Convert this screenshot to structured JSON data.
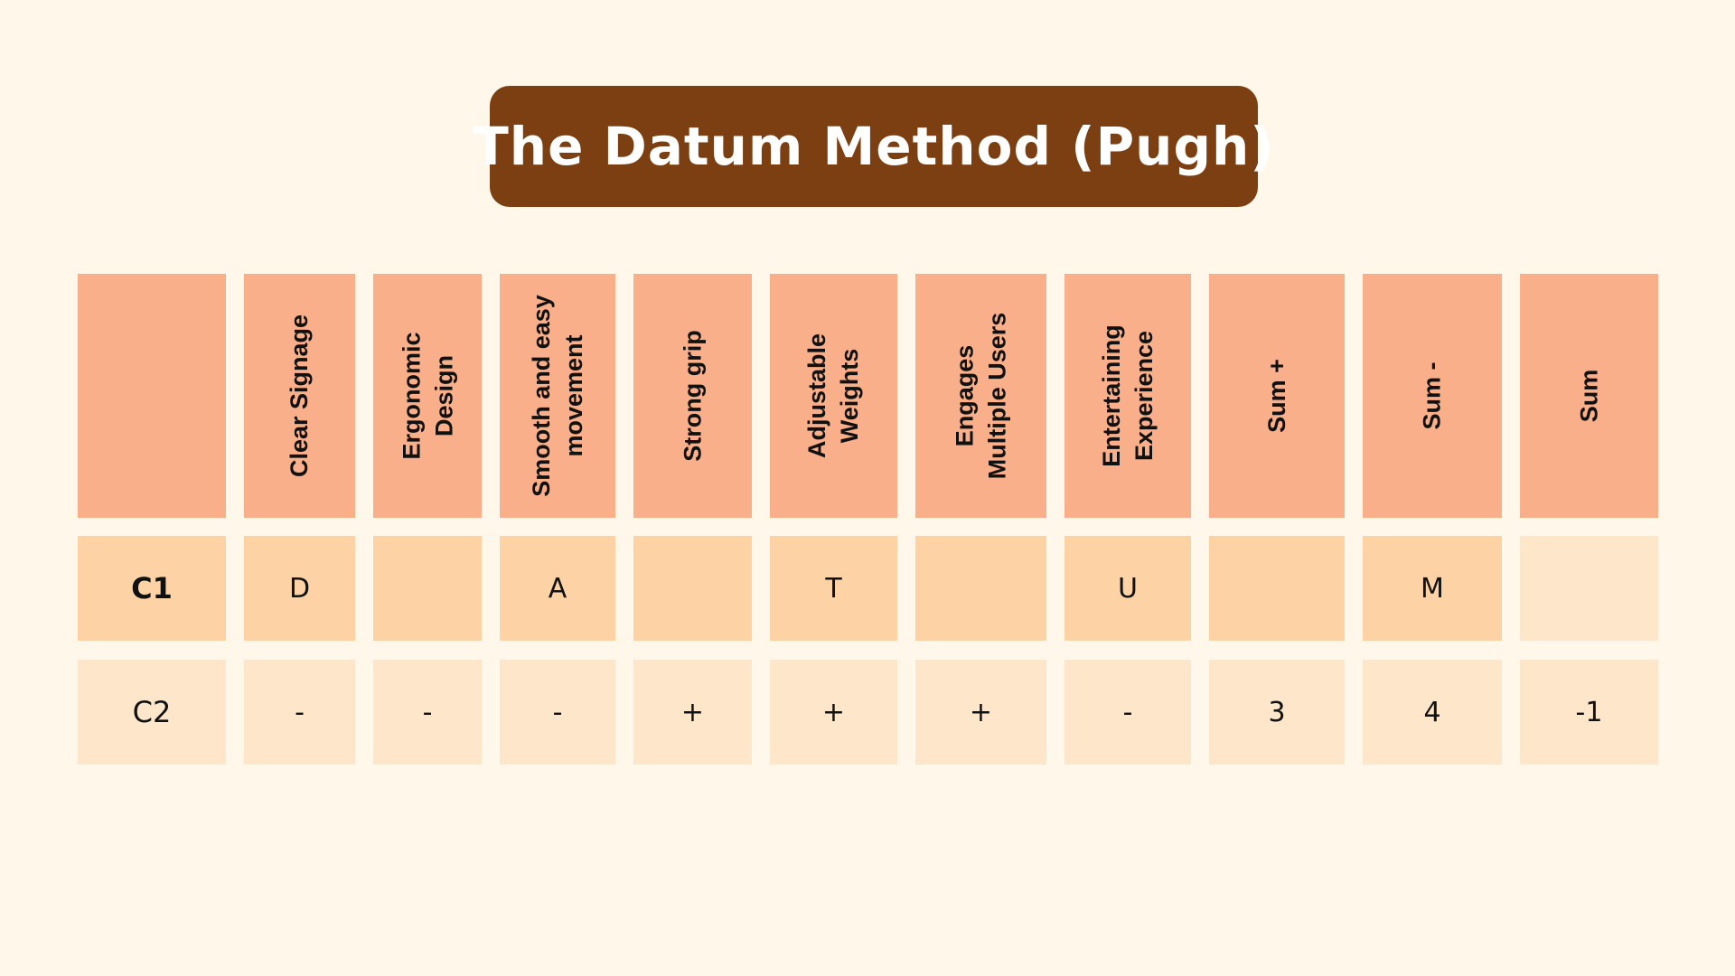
{
  "title": "The Datum Method (Pugh)",
  "table": {
    "headers": [
      "",
      "Clear Signage",
      "Ergonomic\nDesign",
      "Smooth and easy\nmovement",
      "Strong grip",
      "Adjustable\nWeights",
      "Engages\nMultiple Users",
      "Entertaining\nExperience",
      "Sum +",
      "Sum -",
      "Sum"
    ],
    "rows": [
      {
        "label": "C1",
        "cells": [
          "D",
          "",
          "A",
          "",
          "T",
          "",
          "U",
          "",
          "M",
          ""
        ]
      },
      {
        "label": "C2",
        "cells": [
          "-",
          "-",
          "-",
          "+",
          "+",
          "+",
          "-",
          "3",
          "4",
          "-1"
        ]
      }
    ]
  },
  "colors": {
    "background": "#fff7e9",
    "title_bg": "#7b3f12",
    "header_cell": "#f9b08a",
    "row1_cell": "#fdd3a5",
    "row2_cell": "#fde6c9"
  }
}
